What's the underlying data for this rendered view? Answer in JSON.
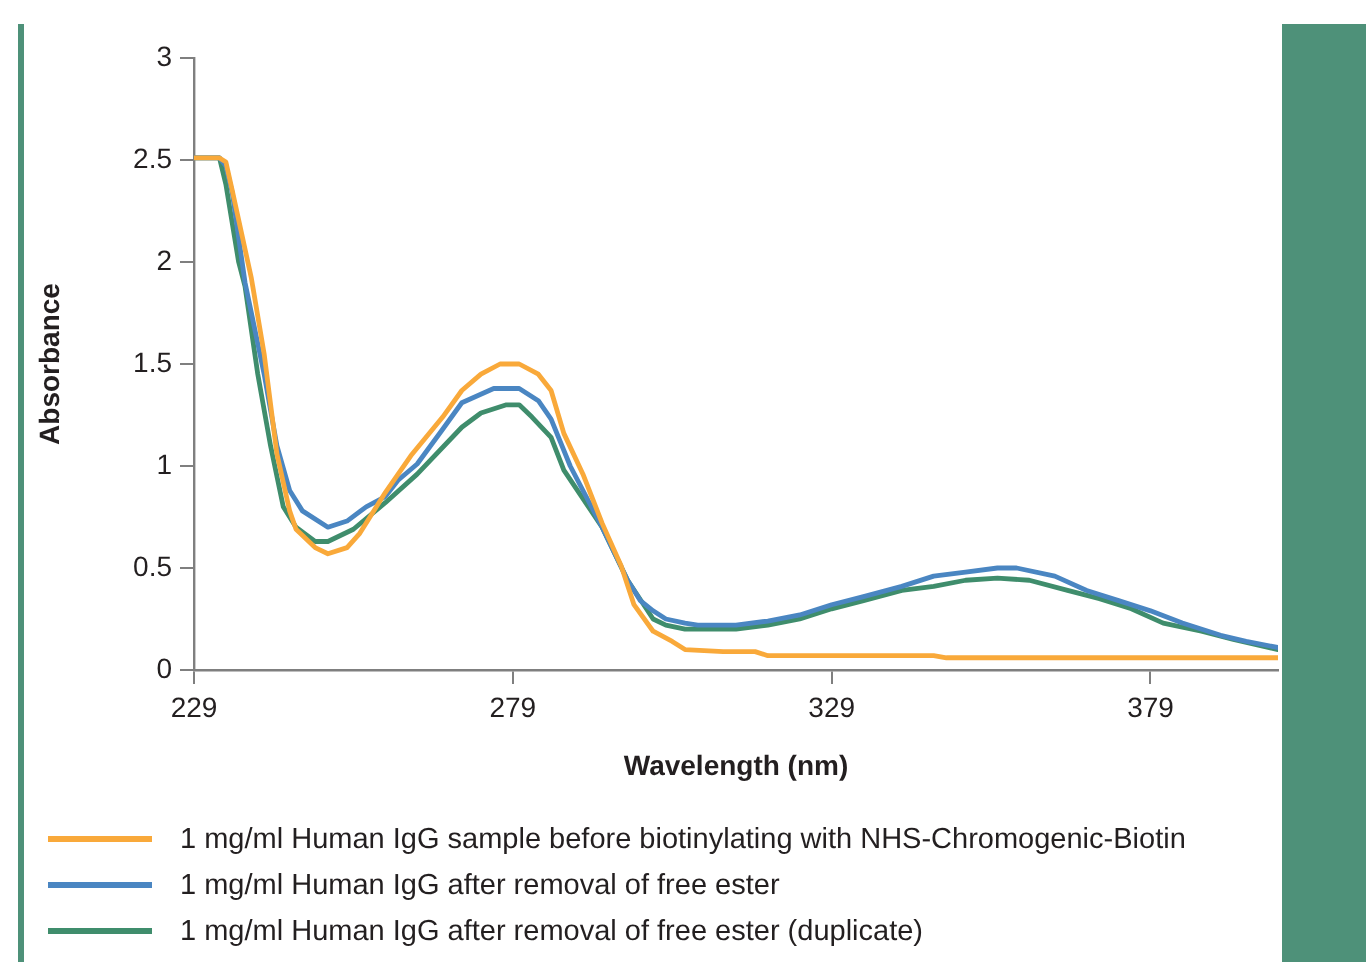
{
  "chart_data": {
    "type": "line",
    "xlabel": "Wavelength (nm)",
    "ylabel": "Absorbance",
    "xlim": [
      229,
      399
    ],
    "xticks": [
      229,
      279,
      329,
      379
    ],
    "ylim": [
      0,
      3
    ],
    "yticks": [
      0,
      0.5,
      1,
      1.5,
      2,
      2.5,
      3
    ],
    "legend": "bottom",
    "marker": "none",
    "line_style": "solid",
    "series": [
      {
        "name": "1 mg/ml Human IgG sample before biotinylating with NHS-Chromogenic-Biotin",
        "color": "#f9a93a",
        "x": [
          229,
          233,
          234,
          235,
          238,
          240,
          242,
          244,
          245,
          248,
          250,
          253,
          255,
          259,
          263,
          268,
          271,
          274,
          277,
          280,
          283,
          285,
          287,
          290,
          293,
          296,
          298,
          301,
          304,
          306,
          312,
          317,
          319,
          345,
          347,
          399
        ],
        "values": [
          2.51,
          2.51,
          2.49,
          2.35,
          1.92,
          1.55,
          1.06,
          0.78,
          0.69,
          0.6,
          0.57,
          0.6,
          0.67,
          0.87,
          1.05,
          1.24,
          1.37,
          1.45,
          1.5,
          1.5,
          1.45,
          1.37,
          1.16,
          0.96,
          0.72,
          0.51,
          0.32,
          0.19,
          0.14,
          0.1,
          0.09,
          0.09,
          0.07,
          0.07,
          0.06,
          0.06
        ]
      },
      {
        "name": "1 mg/ml Human IgG after removal of free ester",
        "color": "#4a86c2",
        "x": [
          229,
          233,
          234,
          235,
          237,
          240,
          242,
          244,
          246,
          250,
          253,
          256,
          259,
          261,
          264,
          268,
          271,
          276,
          280,
          283,
          285,
          288,
          293,
          297,
          299,
          301,
          303,
          306,
          308,
          314,
          319,
          324,
          329,
          334,
          340,
          345,
          350,
          355,
          358,
          364,
          369,
          374,
          379,
          384,
          390,
          394,
          399
        ],
        "values": [
          2.51,
          2.51,
          2.47,
          2.34,
          1.9,
          1.45,
          1.1,
          0.88,
          0.78,
          0.7,
          0.73,
          0.8,
          0.85,
          0.93,
          1.01,
          1.18,
          1.31,
          1.38,
          1.38,
          1.32,
          1.23,
          1.0,
          0.7,
          0.44,
          0.34,
          0.29,
          0.25,
          0.23,
          0.22,
          0.22,
          0.24,
          0.27,
          0.32,
          0.36,
          0.41,
          0.46,
          0.48,
          0.5,
          0.5,
          0.46,
          0.39,
          0.34,
          0.29,
          0.23,
          0.17,
          0.14,
          0.11
        ]
      },
      {
        "name": "1 mg/ml Human IgG after removal of free ester (duplicate)",
        "color": "#3f8d6c",
        "x": [
          229,
          233,
          234,
          236,
          237,
          239,
          241,
          243,
          245,
          248,
          250,
          254,
          259,
          264,
          271,
          274,
          278,
          280,
          282,
          285,
          287,
          293,
          297,
          301,
          303,
          306,
          308,
          314,
          319,
          324,
          329,
          334,
          340,
          345,
          350,
          355,
          360,
          366,
          371,
          376,
          381,
          387,
          392,
          399
        ],
        "values": [
          2.51,
          2.51,
          2.38,
          2.0,
          1.88,
          1.45,
          1.1,
          0.8,
          0.7,
          0.63,
          0.63,
          0.69,
          0.82,
          0.96,
          1.19,
          1.26,
          1.3,
          1.3,
          1.24,
          1.14,
          0.98,
          0.7,
          0.44,
          0.25,
          0.22,
          0.2,
          0.2,
          0.2,
          0.22,
          0.25,
          0.3,
          0.34,
          0.39,
          0.41,
          0.44,
          0.45,
          0.44,
          0.39,
          0.35,
          0.3,
          0.23,
          0.19,
          0.15,
          0.1
        ]
      }
    ]
  }
}
